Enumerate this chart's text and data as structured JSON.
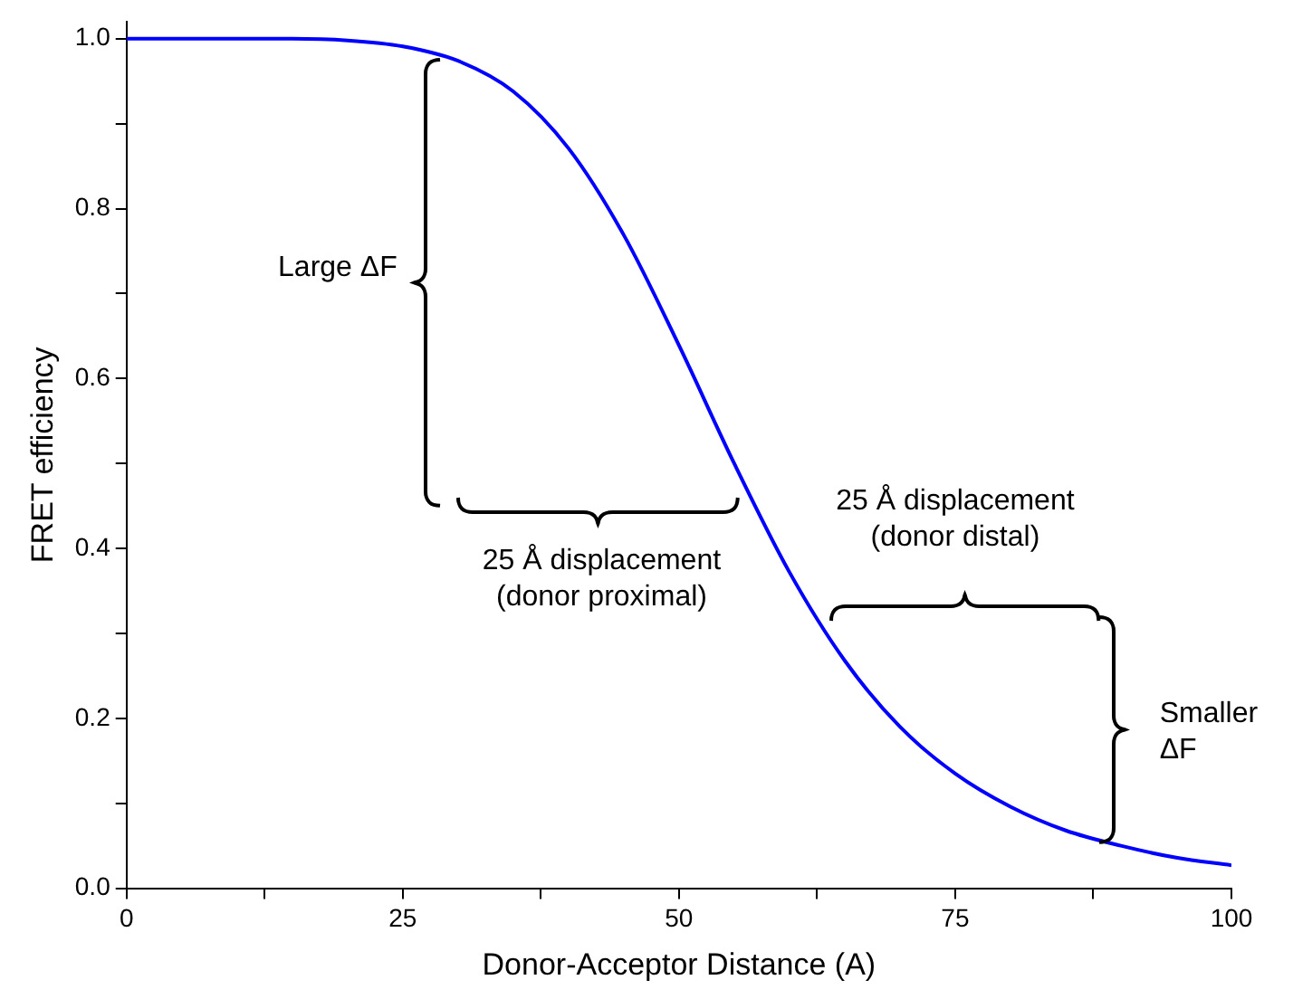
{
  "chart_data": {
    "type": "line",
    "xlabel": "Donor-Acceptor Distance (A)",
    "ylabel": "FRET efficiency",
    "x": [
      0,
      10,
      15,
      20,
      25,
      30,
      35,
      40,
      45,
      50,
      55,
      60,
      65,
      70,
      75,
      80,
      85,
      90,
      95,
      100
    ],
    "series": [
      {
        "color": "#0000ff",
        "values": [
          1.0,
          1.0,
          1.0,
          0.998,
          0.991,
          0.974,
          0.938,
          0.871,
          0.769,
          0.639,
          0.5,
          0.372,
          0.268,
          0.19,
          0.135,
          0.096,
          0.068,
          0.05,
          0.036,
          0.027
        ]
      }
    ],
    "xlim": [
      0,
      100
    ],
    "ylim": [
      0,
      1.02
    ],
    "xticks": [
      0,
      {
        "value": 12.5,
        "label": null
      },
      25,
      {
        "value": 37.5,
        "label": null
      },
      50,
      {
        "value": 62.5,
        "label": null
      },
      75,
      {
        "value": 87.5,
        "label": null
      },
      100
    ],
    "yticks": [
      {
        "value": 0,
        "label": "0.0"
      },
      {
        "value": 0.1,
        "label": null
      },
      {
        "value": 0.2,
        "label": "0.2"
      },
      {
        "value": 0.3,
        "label": null
      },
      {
        "value": 0.4,
        "label": "0.4"
      },
      {
        "value": 0.5,
        "label": null
      },
      {
        "value": 0.6,
        "label": "0.6"
      },
      {
        "value": 0.7,
        "label": null
      },
      {
        "value": 0.8,
        "label": "0.8"
      },
      {
        "value": 0.9,
        "label": null
      },
      {
        "value": 1.0,
        "label": "1.0"
      }
    ],
    "annotations": [
      "Large ΔF",
      "25 Å displacement\n(donor proximal)",
      "25 Å displacement\n(donor distal)",
      "Smaller\nΔF"
    ],
    "grid": false,
    "legend": false,
    "marker": "none",
    "line_style": "solid"
  }
}
